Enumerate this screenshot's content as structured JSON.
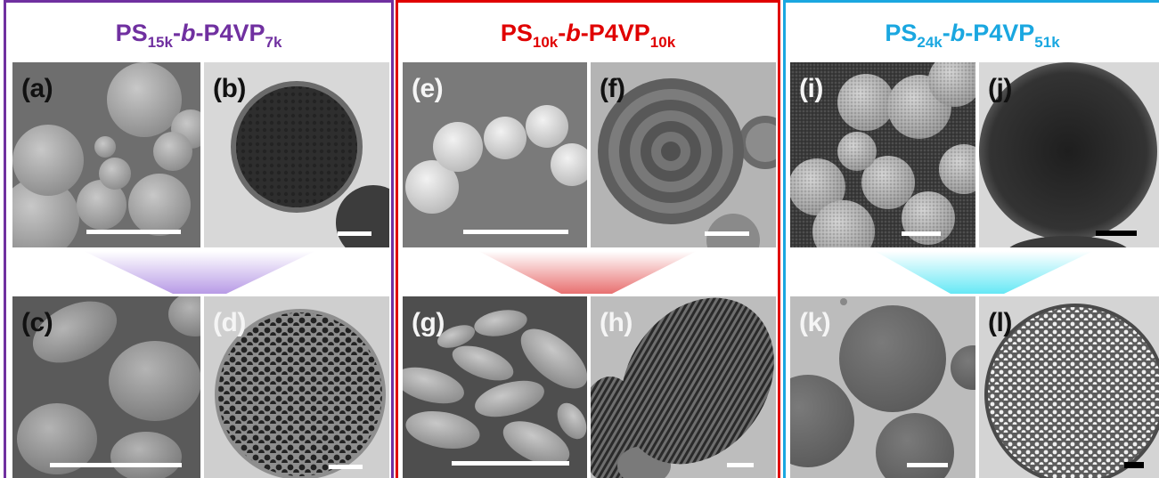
{
  "groups": [
    {
      "id": "ps15k",
      "title": {
        "prefix": "PS",
        "sub1": "15k",
        "dash1": "-",
        "b": "b",
        "dash2": "-",
        "mid": "P4VP",
        "sub2": "7k"
      },
      "color": "#7030a0",
      "arrow_color": "#b89be6",
      "panels": [
        "(a)",
        "(b)",
        "(c)",
        "(d)"
      ]
    },
    {
      "id": "ps10k",
      "title": {
        "prefix": "PS",
        "sub1": "10k",
        "dash1": "-",
        "b": "b",
        "dash2": "-",
        "mid": "P4VP",
        "sub2": "10k"
      },
      "color": "#e00000",
      "arrow_color": "#e87070",
      "panels": [
        "(e)",
        "(f)",
        "(g)",
        "(h)"
      ]
    },
    {
      "id": "ps24k",
      "title": {
        "prefix": "PS",
        "sub1": "24k",
        "dash1": "-",
        "b": "b",
        "dash2": "-",
        "mid": "P4VP",
        "sub2": "51k"
      },
      "color": "#1aa7e0",
      "arrow_color": "#66e8f5",
      "panels": [
        "(i)",
        "(j)",
        "(k)",
        "(l)"
      ]
    }
  ]
}
